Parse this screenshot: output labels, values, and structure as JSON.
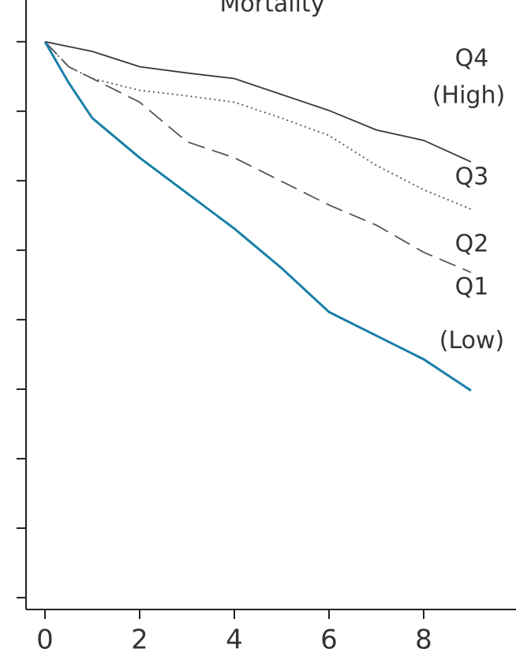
{
  "chart_data": {
    "type": "line",
    "title": "Mortality",
    "x": [
      0,
      0.5,
      1,
      2,
      3,
      4,
      5,
      6,
      7,
      8,
      9
    ],
    "series": [
      {
        "name": "Q4",
        "color": "#3a3a3a",
        "dash": "solid",
        "values": [
          1.0,
          0.993,
          0.986,
          0.964,
          0.955,
          0.947,
          0.924,
          0.901,
          0.873,
          0.858,
          0.827
        ]
      },
      {
        "name": "Q3",
        "color": "#555555",
        "dash": "dotted",
        "values": [
          1.0,
          0.964,
          0.947,
          0.93,
          0.922,
          0.913,
          0.89,
          0.865,
          0.822,
          0.787,
          0.759
        ]
      },
      {
        "name": "Q2",
        "color": "#555555",
        "dash": "dashed",
        "values": [
          1.0,
          0.964,
          0.947,
          0.913,
          0.856,
          0.833,
          0.799,
          0.765,
          0.736,
          0.697,
          0.668
        ]
      },
      {
        "name": "Q1",
        "color": "#1a7fa8",
        "dash": "solid",
        "values": [
          1.0,
          0.941,
          0.89,
          0.833,
          0.782,
          0.731,
          0.674,
          0.611,
          0.577,
          0.543,
          0.498
        ]
      }
    ],
    "annotations": [
      "(High)",
      "(Low)"
    ],
    "xlim": [
      -0.4,
      9.95
    ],
    "xticks": [
      0,
      2,
      4,
      6,
      8
    ],
    "ylim": [
      0.183,
      1.06
    ],
    "yticks": [
      0.2,
      0.3,
      0.4,
      0.5,
      0.6,
      0.7,
      0.8,
      0.9,
      1.0
    ]
  }
}
